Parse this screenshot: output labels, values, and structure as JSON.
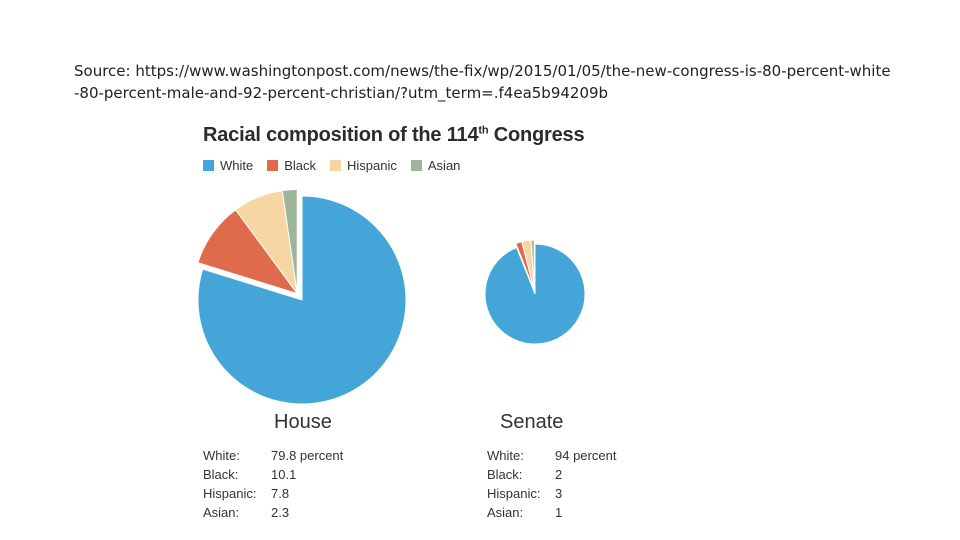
{
  "source_text": "Source: https://www.washingtonpost.com/news/the-fix/wp/2015/01/05/the-new-congress-is-80-percent-white-80-percent-male-and-92-percent-christian/?utm_term=.f4ea5b94209b",
  "chart_data": {
    "type": "pie",
    "title_main": "Racial composition of the 114",
    "title_sup": "th",
    "title_end": " Congress",
    "legend": [
      {
        "label": "White",
        "color": "#43a5d8"
      },
      {
        "label": "Black",
        "color": "#e06a4c"
      },
      {
        "label": "Hispanic",
        "color": "#f6d6a3"
      },
      {
        "label": "Asian",
        "color": "#9eb59a"
      }
    ],
    "pies": [
      {
        "name": "House",
        "slices": [
          {
            "label": "White",
            "value": 79.8,
            "color": "#43a5d8"
          },
          {
            "label": "Black",
            "value": 10.1,
            "color": "#e06a4c"
          },
          {
            "label": "Hispanic",
            "value": 7.8,
            "color": "#f6d6a3"
          },
          {
            "label": "Asian",
            "value": 2.3,
            "color": "#9eb59a"
          }
        ],
        "stats": [
          {
            "key": "White:",
            "val": "79.8 percent"
          },
          {
            "key": "Black:",
            "val": "10.1"
          },
          {
            "key": "Hispanic:",
            "val": "7.8"
          },
          {
            "key": "Asian:",
            "val": "2.3"
          }
        ]
      },
      {
        "name": "Senate",
        "slices": [
          {
            "label": "White",
            "value": 94,
            "color": "#43a5d8"
          },
          {
            "label": "Black",
            "value": 2,
            "color": "#e06a4c"
          },
          {
            "label": "Hispanic",
            "value": 3,
            "color": "#f6d6a3"
          },
          {
            "label": "Asian",
            "value": 1,
            "color": "#9eb59a"
          }
        ],
        "stats": [
          {
            "key": "White:",
            "val": "94 percent"
          },
          {
            "key": "Black:",
            "val": "2"
          },
          {
            "key": "Hispanic:",
            "val": "3"
          },
          {
            "key": "Asian:",
            "val": "1"
          }
        ]
      }
    ]
  }
}
